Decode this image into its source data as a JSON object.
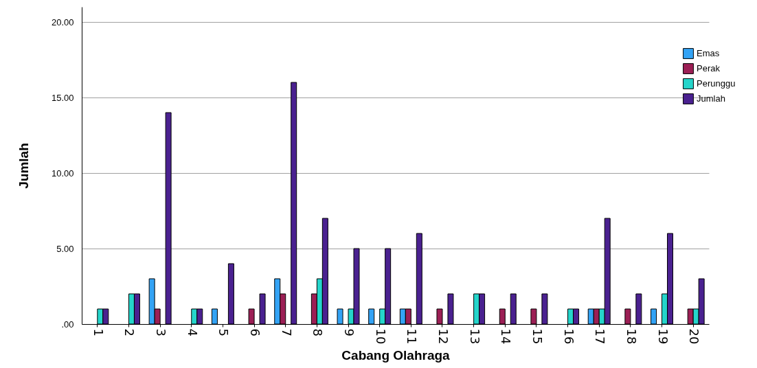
{
  "chart_data": {
    "type": "bar",
    "xlabel": "Cabang Olahraga",
    "ylabel": "Jumlah",
    "categories": [
      "1",
      "2",
      "3",
      "4",
      "5",
      "6",
      "7",
      "8",
      "9",
      "10",
      "11",
      "12",
      "13",
      "14",
      "15",
      "16",
      "17",
      "18",
      "19",
      "20"
    ],
    "series": [
      {
        "name": "Emas",
        "color": "#33a3f5",
        "values": [
          0,
          0,
          3,
          0,
          1,
          0,
          3,
          0,
          1,
          1,
          1,
          0,
          0,
          0,
          0,
          0,
          1,
          0,
          1,
          0
        ]
      },
      {
        "name": "Perak",
        "color": "#9c1f55",
        "values": [
          0,
          0,
          1,
          0,
          0,
          1,
          2,
          2,
          0,
          0,
          1,
          1,
          0,
          1,
          1,
          0,
          1,
          1,
          0,
          1
        ]
      },
      {
        "name": "Perunggu",
        "color": "#25d5cb",
        "values": [
          1,
          2,
          0,
          1,
          0,
          0,
          0,
          3,
          1,
          1,
          0,
          0,
          2,
          0,
          0,
          1,
          1,
          0,
          2,
          1
        ]
      },
      {
        "name": "Jumlah",
        "color": "#4a2190",
        "values": [
          1,
          2,
          14,
          1,
          4,
          2,
          16,
          7,
          5,
          5,
          6,
          2,
          2,
          2,
          2,
          1,
          7,
          2,
          6,
          3
        ]
      }
    ],
    "ylim": [
      0,
      21
    ],
    "yticks": [
      {
        "value": 0,
        "label": ".00"
      },
      {
        "value": 5,
        "label": "5.00"
      },
      {
        "value": 10,
        "label": "10.00"
      },
      {
        "value": 15,
        "label": "15.00"
      },
      {
        "value": 20,
        "label": "20.00"
      }
    ],
    "grid": "y",
    "legend": "top right"
  }
}
